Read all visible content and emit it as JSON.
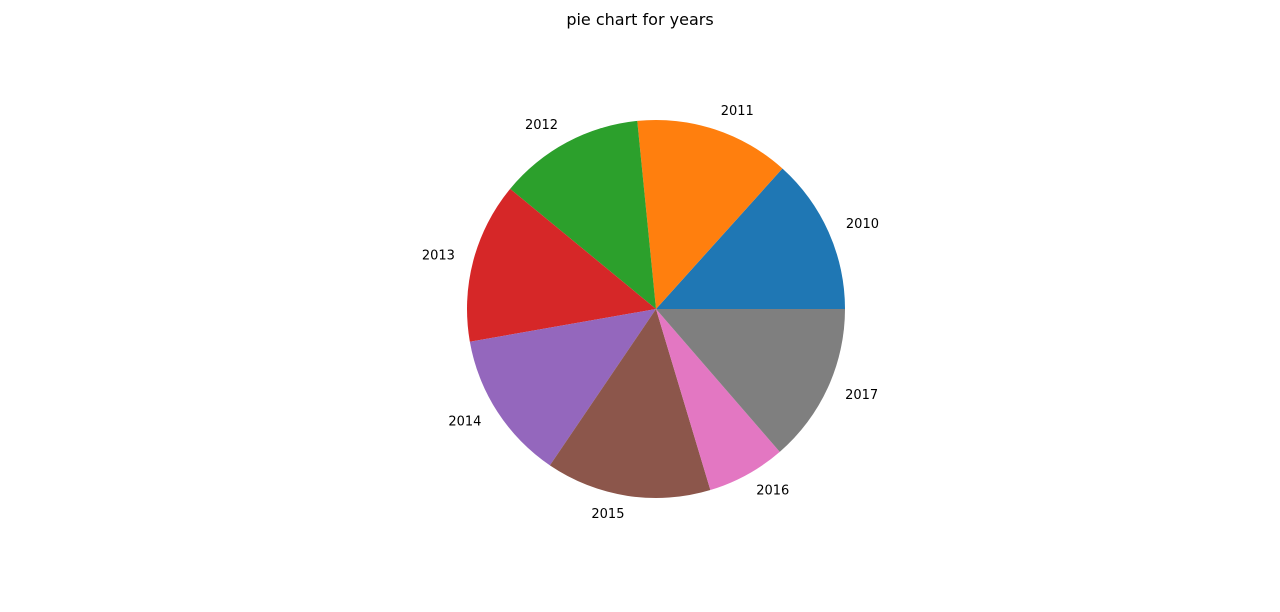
{
  "chart_data": {
    "type": "pie",
    "title": "pie chart for years",
    "categories": [
      "2010",
      "2011",
      "2012",
      "2013",
      "2014",
      "2015",
      "2016",
      "2017"
    ],
    "values": [
      13.5,
      13.4,
      12.6,
      13.9,
      12.9,
      14.3,
      6.8,
      13.8
    ],
    "colors": [
      "#1f77b4",
      "#ff7f0e",
      "#2ca02c",
      "#d62728",
      "#9467bd",
      "#8c564b",
      "#e377c2",
      "#7f7f7f"
    ],
    "start_angle_deg": 0,
    "direction": "counterclockwise",
    "legend": "none"
  }
}
